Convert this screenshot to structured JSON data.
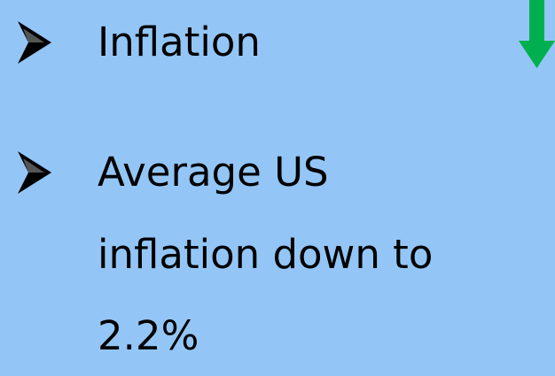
{
  "bullets": [
    {
      "lines": [
        "Inflation"
      ]
    },
    {
      "lines": [
        "Average US",
        "inflation down to",
        "2.2%"
      ]
    }
  ]
}
